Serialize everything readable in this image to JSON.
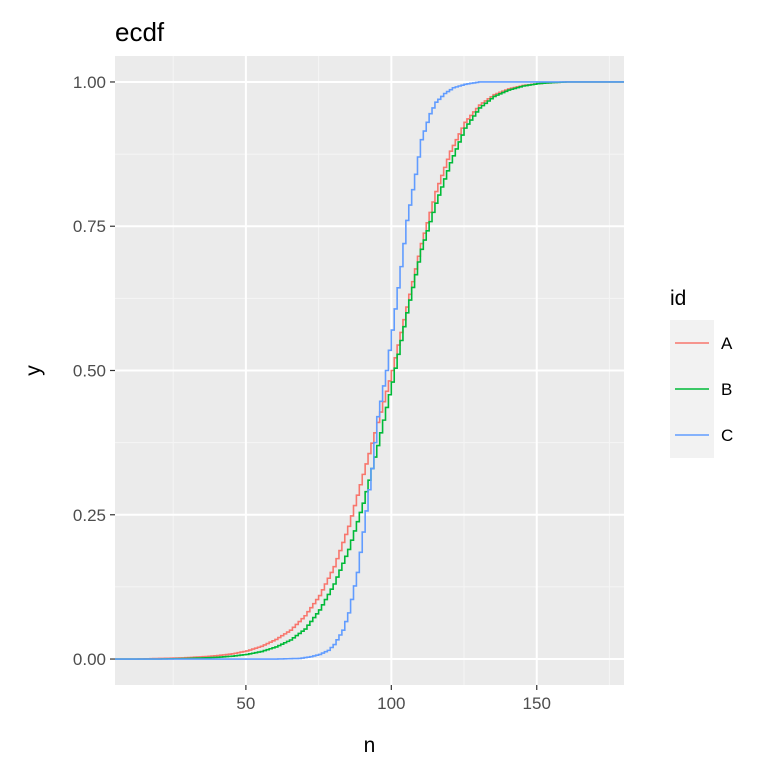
{
  "chart_data": {
    "type": "line",
    "title": "ecdf",
    "xlabel": "n",
    "ylabel": "y",
    "xlim": [
      5,
      180
    ],
    "ylim": [
      -0.045,
      1.045
    ],
    "x_ticks": [
      50,
      100,
      150
    ],
    "x_tick_labels": [
      "50",
      "100",
      "150"
    ],
    "y_ticks": [
      0,
      0.25,
      0.5,
      0.75,
      1
    ],
    "y_tick_labels": [
      "0.00",
      "0.25",
      "0.50",
      "0.75",
      "1.00"
    ],
    "grid": true,
    "legend": {
      "title": "id",
      "position": "right"
    },
    "series": [
      {
        "name": "A",
        "color": "#F8766D",
        "points": [
          [
            5,
            0
          ],
          [
            12,
            0
          ],
          [
            20,
            0.001
          ],
          [
            28,
            0.002
          ],
          [
            35,
            0.004
          ],
          [
            40,
            0.006
          ],
          [
            45,
            0.009
          ],
          [
            50,
            0.014
          ],
          [
            55,
            0.022
          ],
          [
            60,
            0.034
          ],
          [
            65,
            0.05
          ],
          [
            70,
            0.075
          ],
          [
            75,
            0.11
          ],
          [
            80,
            0.16
          ],
          [
            85,
            0.23
          ],
          [
            90,
            0.32
          ],
          [
            95,
            0.41
          ],
          [
            100,
            0.5
          ],
          [
            105,
            0.61
          ],
          [
            110,
            0.72
          ],
          [
            115,
            0.81
          ],
          [
            120,
            0.88
          ],
          [
            125,
            0.93
          ],
          [
            130,
            0.96
          ],
          [
            135,
            0.978
          ],
          [
            140,
            0.988
          ],
          [
            145,
            0.994
          ],
          [
            150,
            0.997
          ],
          [
            155,
            0.999
          ],
          [
            160,
            1
          ],
          [
            180,
            1
          ]
        ]
      },
      {
        "name": "B",
        "color": "#00BA38",
        "points": [
          [
            5,
            0
          ],
          [
            20,
            0
          ],
          [
            30,
            0.001
          ],
          [
            40,
            0.003
          ],
          [
            45,
            0.005
          ],
          [
            50,
            0.008
          ],
          [
            55,
            0.013
          ],
          [
            60,
            0.021
          ],
          [
            65,
            0.033
          ],
          [
            70,
            0.052
          ],
          [
            75,
            0.085
          ],
          [
            80,
            0.13
          ],
          [
            85,
            0.19
          ],
          [
            90,
            0.27
          ],
          [
            95,
            0.37
          ],
          [
            100,
            0.48
          ],
          [
            105,
            0.6
          ],
          [
            110,
            0.71
          ],
          [
            115,
            0.79
          ],
          [
            120,
            0.86
          ],
          [
            125,
            0.92
          ],
          [
            130,
            0.955
          ],
          [
            135,
            0.975
          ],
          [
            140,
            0.986
          ],
          [
            145,
            0.993
          ],
          [
            150,
            0.997
          ],
          [
            155,
            0.999
          ],
          [
            160,
            1
          ],
          [
            180,
            1
          ]
        ]
      },
      {
        "name": "C",
        "color": "#619CFF",
        "points": [
          [
            5,
            0
          ],
          [
            60,
            0
          ],
          [
            68,
            0.001
          ],
          [
            72,
            0.004
          ],
          [
            75,
            0.008
          ],
          [
            78,
            0.015
          ],
          [
            80,
            0.025
          ],
          [
            83,
            0.05
          ],
          [
            85,
            0.08
          ],
          [
            88,
            0.15
          ],
          [
            90,
            0.22
          ],
          [
            93,
            0.33
          ],
          [
            95,
            0.42
          ],
          [
            98,
            0.5
          ],
          [
            100,
            0.57
          ],
          [
            103,
            0.68
          ],
          [
            105,
            0.76
          ],
          [
            108,
            0.84
          ],
          [
            110,
            0.9
          ],
          [
            113,
            0.945
          ],
          [
            115,
            0.965
          ],
          [
            118,
            0.98
          ],
          [
            121,
            0.99
          ],
          [
            125,
            0.996
          ],
          [
            130,
            1
          ],
          [
            180,
            1
          ]
        ]
      }
    ]
  }
}
